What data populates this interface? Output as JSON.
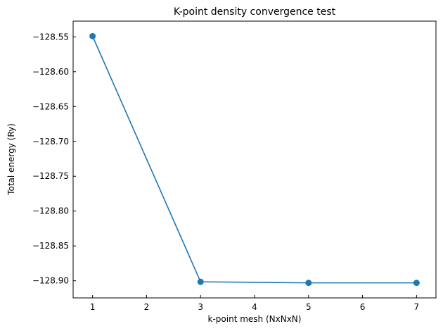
{
  "chart_data": {
    "type": "line",
    "title": "K-point density convergence test",
    "xlabel": "k-point mesh (NxNxN)",
    "ylabel": "Total energy (Ry)",
    "x": [
      1,
      3,
      5,
      7
    ],
    "series": [
      {
        "values": [
          -128.549,
          -128.9015,
          -128.903,
          -128.903
        ]
      }
    ],
    "xlim": [
      0.64,
      7.36
    ],
    "ylim": [
      -128.9246,
      -128.5274
    ],
    "xticks": [
      1,
      2,
      3,
      4,
      5,
      6,
      7
    ],
    "xtick_labels": [
      "1",
      "2",
      "3",
      "4",
      "5",
      "6",
      "7"
    ],
    "yticks": [
      -128.55,
      -128.6,
      -128.65,
      -128.7,
      -128.75,
      -128.8,
      -128.85,
      -128.9
    ],
    "ytick_labels": [
      "−128.55",
      "−128.60",
      "−128.65",
      "−128.70",
      "−128.75",
      "−128.80",
      "−128.85",
      "−128.90"
    ],
    "grid": false,
    "line_color": "#1f77b4",
    "marker": "circle"
  }
}
